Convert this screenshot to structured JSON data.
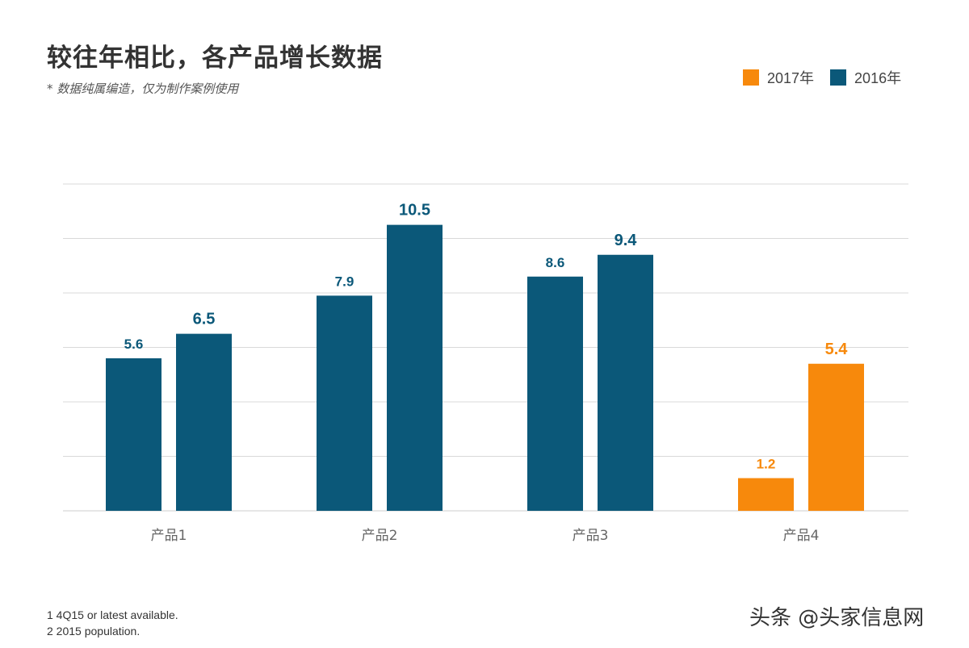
{
  "header": {
    "title": "较往年相比，各产品增长数据",
    "subtitle": "* 数据纯属编造，仅为制作案例使用"
  },
  "legend": {
    "items": [
      {
        "label": "2017年",
        "color": "#f7890c"
      },
      {
        "label": "2016年",
        "color": "#0b5879"
      }
    ]
  },
  "chart_data": {
    "type": "bar",
    "categories": [
      "产品1",
      "产品2",
      "产品3",
      "产品4"
    ],
    "bars": [
      {
        "category": "产品1",
        "values": [
          5.6,
          6.5
        ],
        "labels": [
          "5.6",
          "6.5"
        ],
        "color": "#0b5879"
      },
      {
        "category": "产品2",
        "values": [
          7.9,
          10.5
        ],
        "labels": [
          "7.9",
          "10.5"
        ],
        "color": "#0b5879"
      },
      {
        "category": "产品3",
        "values": [
          8.6,
          9.4
        ],
        "labels": [
          "8.6",
          "9.4"
        ],
        "color": "#0b5879"
      },
      {
        "category": "产品4",
        "values": [
          1.2,
          5.4
        ],
        "labels": [
          "1.2",
          "5.4"
        ],
        "color": "#f7890c"
      }
    ],
    "ylim": [
      0,
      12
    ],
    "y_gridlines": [
      0,
      2,
      4,
      6,
      8,
      10,
      12
    ],
    "grid": true,
    "legend_position": "top-right",
    "colors": {
      "dark_blue": "#0b5879",
      "orange": "#f7890c",
      "grid": "#d9d9d9",
      "tick_label": "#666666"
    }
  },
  "footnotes": [
    "1 4Q15 or latest available.",
    "2 2015 population."
  ],
  "watermark": "头条 @头家信息网"
}
